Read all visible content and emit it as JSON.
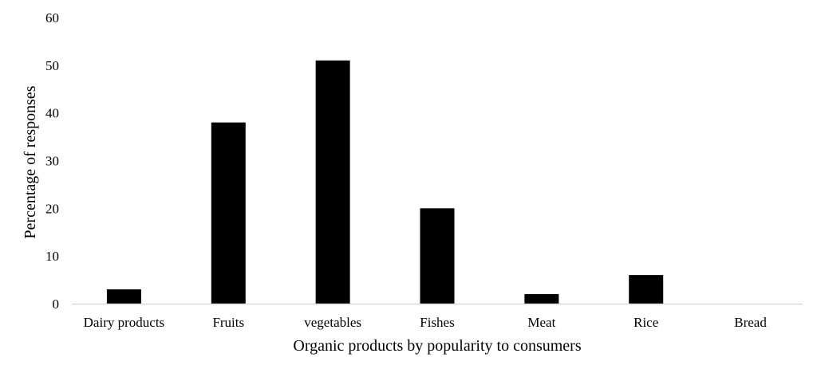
{
  "chart_data": {
    "type": "bar",
    "title": "",
    "xlabel": "Organic products by popularity to consumers",
    "ylabel": "Percentage of responses",
    "categories": [
      "Dairy products",
      "Fruits",
      "vegetables",
      "Fishes",
      "Meat",
      "Rice",
      "Bread"
    ],
    "values": [
      3,
      38,
      51,
      20,
      2,
      6,
      0
    ],
    "ylim": [
      0,
      60
    ],
    "yticks": [
      "0",
      "10",
      "20",
      "30",
      "40",
      "50",
      "60"
    ],
    "grid": false,
    "legend": "none",
    "colors": {
      "bar": "#000000",
      "axis": "#d9d9d9",
      "text": "#000000"
    }
  }
}
